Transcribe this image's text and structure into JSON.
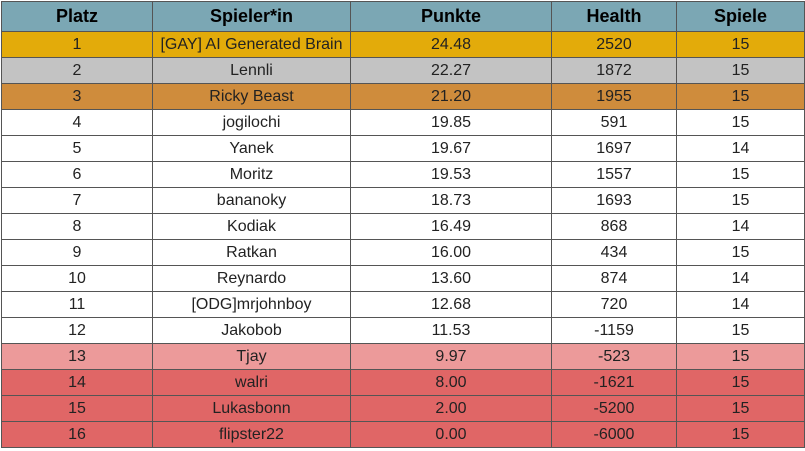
{
  "colors": {
    "header": "#7ba7b4",
    "gold": "#e3ab0a",
    "silver": "#c3c3c3",
    "bronze": "#cf8c3c",
    "normal": "#ffffff",
    "danger_light": "#ec9a9a",
    "danger": "#e06666"
  },
  "headers": [
    "Platz",
    "Spieler*in",
    "Punkte",
    "Health",
    "Spiele"
  ],
  "rows": [
    {
      "platz": "1",
      "name": "[GAY] AI Generated Brain",
      "punkte": "24.48",
      "health": "2520",
      "spiele": "15",
      "tier": "gold"
    },
    {
      "platz": "2",
      "name": "Lennli",
      "punkte": "22.27",
      "health": "1872",
      "spiele": "15",
      "tier": "silver"
    },
    {
      "platz": "3",
      "name": "Ricky Beast",
      "punkte": "21.20",
      "health": "1955",
      "spiele": "15",
      "tier": "bronze"
    },
    {
      "platz": "4",
      "name": "jogilochi",
      "punkte": "19.85",
      "health": "591",
      "spiele": "15",
      "tier": "normal"
    },
    {
      "platz": "5",
      "name": "Yanek",
      "punkte": "19.67",
      "health": "1697",
      "spiele": "14",
      "tier": "normal"
    },
    {
      "platz": "6",
      "name": "Moritz",
      "punkte": "19.53",
      "health": "1557",
      "spiele": "15",
      "tier": "normal"
    },
    {
      "platz": "7",
      "name": "bananoky",
      "punkte": "18.73",
      "health": "1693",
      "spiele": "15",
      "tier": "normal"
    },
    {
      "platz": "8",
      "name": "Kodiak",
      "punkte": "16.49",
      "health": "868",
      "spiele": "14",
      "tier": "normal"
    },
    {
      "platz": "9",
      "name": "Ratkan",
      "punkte": "16.00",
      "health": "434",
      "spiele": "15",
      "tier": "normal"
    },
    {
      "platz": "10",
      "name": "Reynardo",
      "punkte": "13.60",
      "health": "874",
      "spiele": "14",
      "tier": "normal"
    },
    {
      "platz": "11",
      "name": "[ODG]mrjohnboy",
      "punkte": "12.68",
      "health": "720",
      "spiele": "14",
      "tier": "normal"
    },
    {
      "platz": "12",
      "name": "Jakobob",
      "punkte": "11.53",
      "health": "-1159",
      "spiele": "15",
      "tier": "normal"
    },
    {
      "platz": "13",
      "name": "Tjay",
      "punkte": "9.97",
      "health": "-523",
      "spiele": "15",
      "tier": "danger_light"
    },
    {
      "platz": "14",
      "name": "walri",
      "punkte": "8.00",
      "health": "-1621",
      "spiele": "15",
      "tier": "danger"
    },
    {
      "platz": "15",
      "name": "Lukasbonn",
      "punkte": "2.00",
      "health": "-5200",
      "spiele": "15",
      "tier": "danger"
    },
    {
      "platz": "16",
      "name": "flipster22",
      "punkte": "0.00",
      "health": "-6000",
      "spiele": "15",
      "tier": "danger"
    }
  ]
}
